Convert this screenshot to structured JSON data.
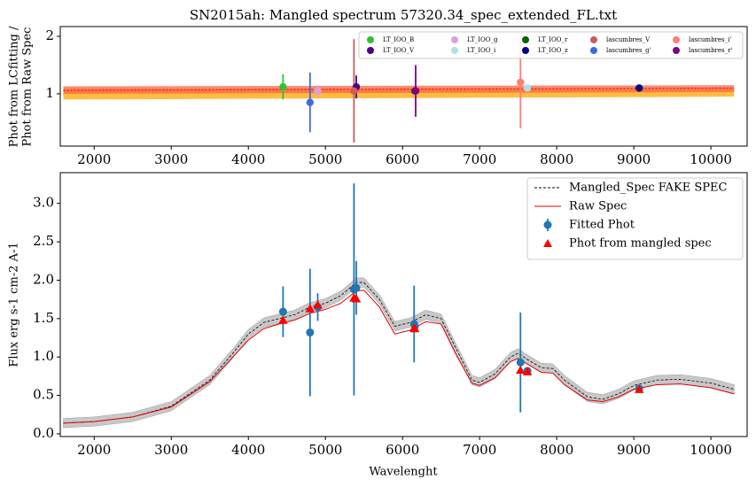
{
  "chart_data": [
    {
      "type": "scatter",
      "title": "SN2015ah: Mangled spectrum 57320.34_spec_extended_FL.txt",
      "ylabel": [
        "Phot from LCfitting /",
        "Phot from Raw Spec"
      ],
      "xlim": [
        1560,
        10470
      ],
      "ylim": [
        0.09,
        2.17
      ],
      "xticks": [
        2000,
        3000,
        4000,
        5000,
        6000,
        7000,
        8000,
        9000,
        10000
      ],
      "yticks": [
        1,
        2
      ],
      "legend": {
        "loc": "upper right",
        "ncol": 5
      },
      "bands": [
        {
          "color": "#ffa500",
          "x": [
            1600,
            10300
          ],
          "lower": [
            0.9,
            0.95
          ],
          "upper": [
            1.09,
            1.1
          ]
        },
        {
          "color": "#ff6347",
          "x": [
            1600,
            10300
          ],
          "lower": [
            1.0,
            1.03
          ],
          "upper": [
            1.13,
            1.15
          ]
        }
      ],
      "fit_line": {
        "color": "#cc2222",
        "x": [
          1600,
          10300
        ],
        "values": [
          1.06,
          1.1
        ]
      },
      "series": [
        {
          "name": "LT_IOO_B",
          "color": "#32c032",
          "x": [
            4450
          ],
          "values": [
            1.12
          ],
          "errors": [
            0.22
          ]
        },
        {
          "name": "LT_IOO_V",
          "color": "#4b0082",
          "x": [
            5400
          ],
          "values": [
            1.12
          ],
          "errors": [
            0.2
          ]
        },
        {
          "name": "LT_IOO_g",
          "color": "#dda0dd",
          "x": [
            4900
          ],
          "values": [
            1.05
          ],
          "errors": [
            0.1
          ]
        },
        {
          "name": "LT_IOO_i",
          "color": "#b0e0e6",
          "x": [
            7620
          ],
          "values": [
            1.1
          ],
          "errors": [
            0.05
          ]
        },
        {
          "name": "LT_IOO_r",
          "color": "#006400",
          "x": [
            6160
          ],
          "values": [
            1.05
          ],
          "errors": [
            0.04
          ]
        },
        {
          "name": "LT_IOO_z",
          "color": "#000080",
          "x": [
            9070
          ],
          "values": [
            1.1
          ],
          "errors": [
            0.02
          ]
        },
        {
          "name": "lascumbres_V",
          "color": "#cd5c5c",
          "x": [
            5370
          ],
          "values": [
            1.05
          ],
          "errors": [
            0.9
          ]
        },
        {
          "name": "lascumbres_g'",
          "color": "#4169e1",
          "x": [
            4800
          ],
          "values": [
            0.85
          ],
          "errors": [
            0.52
          ]
        },
        {
          "name": "lascumbres_i'",
          "color": "#fa8072",
          "x": [
            7530
          ],
          "values": [
            1.2
          ],
          "errors": [
            0.8
          ]
        },
        {
          "name": "lascumbres_r'",
          "color": "#800080",
          "x": [
            6170
          ],
          "values": [
            1.05
          ],
          "errors": [
            0.45
          ]
        }
      ]
    },
    {
      "type": "line",
      "xlabel": "Wavelenght",
      "ylabel": "Flux erg s-1 cm-2 A-1",
      "xlim": [
        1560,
        10470
      ],
      "ylim": [
        -0.035,
        3.4
      ],
      "xticks": [
        2000,
        3000,
        4000,
        5000,
        6000,
        7000,
        8000,
        9000,
        10000
      ],
      "yticks": [
        {
          "value": 0,
          "label": "0.0"
        },
        0.5,
        {
          "value": 1,
          "label": "1.0"
        },
        1.5,
        {
          "value": 2,
          "label": "2.0"
        },
        2.5,
        {
          "value": 3,
          "label": "3.0"
        }
      ],
      "legend": {
        "loc": "upper right",
        "ncol": 1
      },
      "series": [
        {
          "name": "Mangled_Spec FAKE SPEC",
          "style": "line",
          "dash": true,
          "color": "#000000",
          "uncertainty": 0.06,
          "band_color": "#c8c8c8",
          "x": [
            1600,
            2000,
            2500,
            3000,
            3500,
            3800,
            4000,
            4200,
            4400,
            4600,
            4800,
            5000,
            5200,
            5400,
            5500,
            5700,
            5900,
            6100,
            6300,
            6500,
            6700,
            6900,
            7000,
            7200,
            7400,
            7500,
            7600,
            7800,
            7950,
            8100,
            8400,
            8600,
            8800,
            9000,
            9300,
            9600,
            10000,
            10300
          ],
          "values": [
            0.14,
            0.16,
            0.22,
            0.36,
            0.7,
            1.05,
            1.3,
            1.45,
            1.5,
            1.55,
            1.65,
            1.7,
            1.8,
            1.97,
            1.97,
            1.75,
            1.4,
            1.45,
            1.55,
            1.5,
            1.1,
            0.7,
            0.67,
            0.78,
            1.0,
            1.05,
            0.98,
            0.86,
            0.85,
            0.7,
            0.48,
            0.45,
            0.52,
            0.63,
            0.7,
            0.71,
            0.66,
            0.58
          ]
        },
        {
          "name": "Raw Spec",
          "style": "line",
          "color": "#e00000",
          "x": [
            1600,
            2000,
            2500,
            3000,
            3500,
            3800,
            4000,
            4200,
            4400,
            4600,
            4800,
            5000,
            5200,
            5400,
            5500,
            5700,
            5900,
            6100,
            6300,
            6500,
            6700,
            6900,
            7000,
            7200,
            7400,
            7500,
            7600,
            7800,
            7950,
            8100,
            8400,
            8600,
            8800,
            9000,
            9300,
            9600,
            10000,
            10300
          ],
          "values": [
            0.14,
            0.16,
            0.22,
            0.35,
            0.68,
            1.0,
            1.22,
            1.37,
            1.43,
            1.48,
            1.57,
            1.62,
            1.7,
            1.86,
            1.87,
            1.65,
            1.3,
            1.35,
            1.46,
            1.43,
            1.02,
            0.66,
            0.63,
            0.73,
            0.94,
            0.98,
            0.92,
            0.8,
            0.79,
            0.64,
            0.44,
            0.42,
            0.48,
            0.58,
            0.64,
            0.65,
            0.6,
            0.52
          ]
        },
        {
          "name": "Fitted Phot",
          "style": "errorbar",
          "color": "#1f77b4",
          "x": [
            4450,
            4800,
            4900,
            5370,
            5400,
            6150,
            6160,
            7530,
            7620,
            9070
          ],
          "values": [
            1.59,
            1.32,
            1.65,
            1.88,
            1.9,
            1.43,
            1.4,
            0.93,
            0.82,
            0.59
          ],
          "errors": [
            0.33,
            0.83,
            0.18,
            1.38,
            0.35,
            0.5,
            0.05,
            0.65,
            0.03,
            0.03
          ]
        },
        {
          "name": "Phot from mangled spec",
          "style": "marker",
          "marker": "^",
          "color": "#ff0000",
          "x": [
            4450,
            4800,
            4900,
            5370,
            5400,
            6150,
            6160,
            7530,
            7620,
            9070
          ],
          "values": [
            1.48,
            1.63,
            1.68,
            1.77,
            1.76,
            1.38,
            1.37,
            0.83,
            0.81,
            0.58
          ]
        }
      ]
    }
  ]
}
